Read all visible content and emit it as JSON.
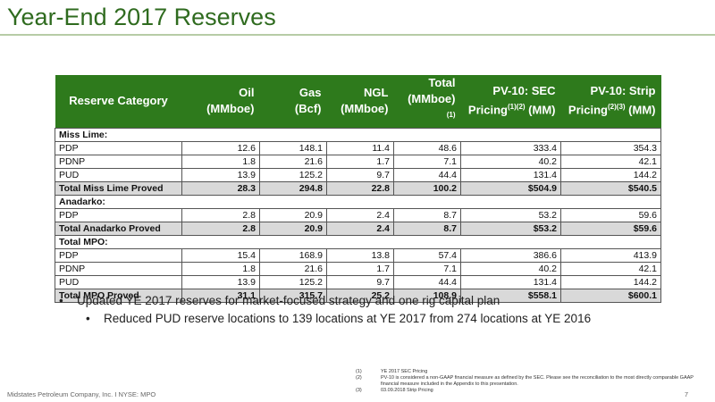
{
  "title": "Year-End 2017 Reserves",
  "headers": {
    "category": "Reserve Category",
    "oil": [
      "Oil",
      "(MMboe)"
    ],
    "gas": [
      "Gas",
      "(Bcf)"
    ],
    "ngl": [
      "NGL",
      "(MMboe)"
    ],
    "total": [
      "Total",
      "(MMboe)",
      "(1)"
    ],
    "pv_sec": [
      "PV-10: SEC",
      "Pricing",
      "(1)(2)",
      " (MM)"
    ],
    "pv_strip": [
      "PV-10: Strip",
      "Pricing",
      "(2)(3)",
      " (MM)"
    ]
  },
  "sections": [
    {
      "title": "Miss Lime:",
      "rows": [
        {
          "cat": "PDP",
          "oil": "12.6",
          "gas": "148.1",
          "ngl": "11.4",
          "total": "48.6",
          "pv_sec": "333.4",
          "pv_strip": "354.3"
        },
        {
          "cat": "PDNP",
          "oil": "1.8",
          "gas": "21.6",
          "ngl": "1.7",
          "total": "7.1",
          "pv_sec": "40.2",
          "pv_strip": "42.1"
        },
        {
          "cat": "PUD",
          "oil": "13.9",
          "gas": "125.2",
          "ngl": "9.7",
          "total": "44.4",
          "pv_sec": "131.4",
          "pv_strip": "144.2"
        }
      ],
      "total": {
        "cat": "Total Miss Lime Proved",
        "oil": "28.3",
        "gas": "294.8",
        "ngl": "22.8",
        "total": "100.2",
        "pv_sec": "$504.9",
        "pv_strip": "$540.5"
      }
    },
    {
      "title": "Anadarko:",
      "rows": [
        {
          "cat": "PDP",
          "oil": "2.8",
          "gas": "20.9",
          "ngl": "2.4",
          "total": "8.7",
          "pv_sec": "53.2",
          "pv_strip": "59.6"
        }
      ],
      "total": {
        "cat": "Total Anadarko Proved",
        "oil": "2.8",
        "gas": "20.9",
        "ngl": "2.4",
        "total": "8.7",
        "pv_sec": "$53.2",
        "pv_strip": "$59.6"
      }
    },
    {
      "title": "Total MPO:",
      "rows": [
        {
          "cat": "PDP",
          "oil": "15.4",
          "gas": "168.9",
          "ngl": "13.8",
          "total": "57.4",
          "pv_sec": "386.6",
          "pv_strip": "413.9"
        },
        {
          "cat": "PDNP",
          "oil": "1.8",
          "gas": "21.6",
          "ngl": "1.7",
          "total": "7.1",
          "pv_sec": "40.2",
          "pv_strip": "42.1"
        },
        {
          "cat": "PUD",
          "oil": "13.9",
          "gas": "125.2",
          "ngl": "9.7",
          "total": "44.4",
          "pv_sec": "131.4",
          "pv_strip": "144.2"
        }
      ],
      "total": {
        "cat": "Total MPO Proved",
        "oil": "31.1",
        "gas": "315.7",
        "ngl": "25.2",
        "total": "108.9",
        "pv_sec": "$558.1",
        "pv_strip": "$600.1"
      }
    }
  ],
  "bullets": {
    "level1": "Updated YE 2017 reserves for market-focused strategy and one rig capital plan",
    "level2": "Reduced PUD reserve locations to 139 locations at YE 2017 from 274 locations at YE 2016",
    "marker": "•"
  },
  "footnotes": [
    {
      "num": "(1)",
      "text": "YE 2017 SEC Pricing"
    },
    {
      "num": "(2)",
      "text": "PV-10 is considered a non-GAAP financial measure as defined by the SEC.  Please see the reconciliation to the most directly comparable GAAP financial measure included in the Appendix to this presentation."
    },
    {
      "num": "(3)",
      "text": "03.09.2018 Strip Pricing"
    }
  ],
  "footer": "Midstates Petroleum Company, Inc. I NYSE: MPO",
  "page_number": "7"
}
